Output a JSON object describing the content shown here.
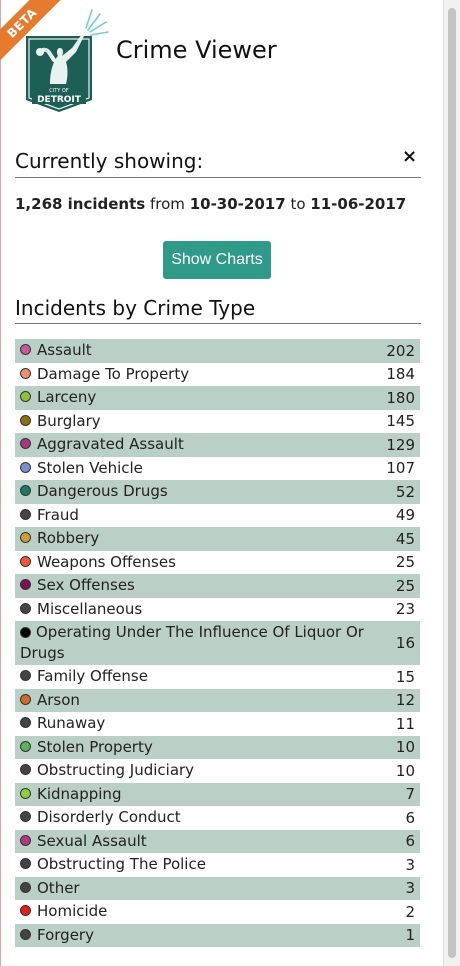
{
  "header": {
    "badge": "BETA",
    "logo_text_top": "CITY OF",
    "logo_text_bottom": "DETROIT",
    "app_title": "Crime Viewer"
  },
  "filters": {
    "title": "Currently showing:",
    "close_symbol": "×",
    "incident_count": "1,268 incidents",
    "from_label": "from",
    "date_from": "10-30-2017",
    "to_label": "to",
    "date_to": "11-06-2017",
    "show_charts_label": "Show Charts"
  },
  "crime_types": {
    "title": "Incidents by Crime Type",
    "items": [
      {
        "name": "Assault",
        "count": "202",
        "color": "#c85a9a"
      },
      {
        "name": "Damage To Property",
        "count": "184",
        "color": "#f0906a"
      },
      {
        "name": "Larceny",
        "count": "180",
        "color": "#8fbf3a"
      },
      {
        "name": "Burglary",
        "count": "145",
        "color": "#8a6f0e"
      },
      {
        "name": "Aggravated Assault",
        "count": "129",
        "color": "#a33a78"
      },
      {
        "name": "Stolen Vehicle",
        "count": "107",
        "color": "#7b8fd0"
      },
      {
        "name": "Dangerous Drugs",
        "count": "52",
        "color": "#1a7a64"
      },
      {
        "name": "Fraud",
        "count": "49",
        "color": "#444444"
      },
      {
        "name": "Robbery",
        "count": "45",
        "color": "#c9a03a"
      },
      {
        "name": "Weapons Offenses",
        "count": "25",
        "color": "#f05a3a"
      },
      {
        "name": "Sex Offenses",
        "count": "25",
        "color": "#7a1050"
      },
      {
        "name": "Miscellaneous",
        "count": "23",
        "color": "#444444"
      },
      {
        "name": "Operating Under The Influence Of Liquor Or Drugs",
        "count": "16",
        "color": "#000000"
      },
      {
        "name": "Family Offense",
        "count": "15",
        "color": "#444444"
      },
      {
        "name": "Arson",
        "count": "12",
        "color": "#d06a2a"
      },
      {
        "name": "Runaway",
        "count": "11",
        "color": "#444444"
      },
      {
        "name": "Stolen Property",
        "count": "10",
        "color": "#5ab35a"
      },
      {
        "name": "Obstructing Judiciary",
        "count": "10",
        "color": "#444444"
      },
      {
        "name": "Kidnapping",
        "count": "7",
        "color": "#8fcf3a"
      },
      {
        "name": "Disorderly Conduct",
        "count": "6",
        "color": "#444444"
      },
      {
        "name": "Sexual Assault",
        "count": "6",
        "color": "#b03a80"
      },
      {
        "name": "Obstructing The Police",
        "count": "3",
        "color": "#444444"
      },
      {
        "name": "Other",
        "count": "3",
        "color": "#444444"
      },
      {
        "name": "Homicide",
        "count": "2",
        "color": "#e0201a"
      },
      {
        "name": "Forgery",
        "count": "1",
        "color": "#444444"
      }
    ]
  }
}
